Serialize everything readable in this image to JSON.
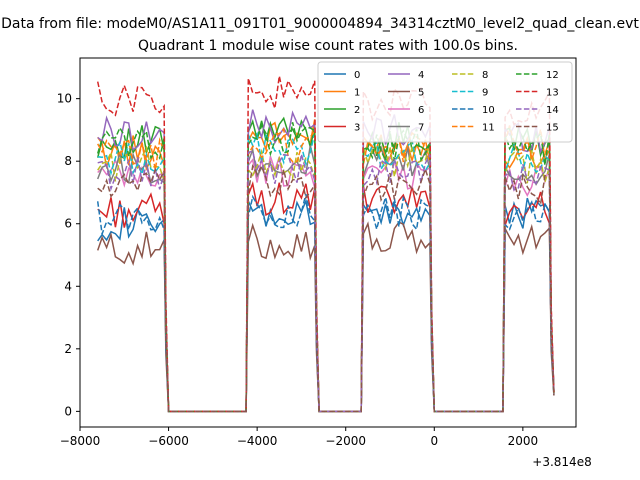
{
  "chart_data": {
    "type": "line",
    "suptitle": "Data from file: modeM0/AS1A11_091T01_9000004894_34314cztM0_level2_quad_clean.evt",
    "title": "Quadrant 1 module wise count rates with 100.0s bins.",
    "xlabel": "",
    "ylabel": "",
    "x_offset_label": "+3.814e8",
    "xlim": [
      -8000,
      3200
    ],
    "ylim": [
      -0.5,
      11.3
    ],
    "xticks": [
      -8000,
      -6000,
      -4000,
      -2000,
      0,
      2000
    ],
    "xtick_labels": [
      "−8000",
      "−6000",
      "−4000",
      "−2000",
      "0",
      "2000"
    ],
    "yticks": [
      0,
      2,
      4,
      6,
      8,
      10
    ],
    "ytick_labels": [
      "0",
      "2",
      "4",
      "6",
      "8",
      "10"
    ],
    "grid": false,
    "legend_position": "top-right",
    "legend_columns": 4,
    "segments": [
      [
        -7600,
        -6000
      ],
      [
        -4200,
        -2600
      ],
      [
        -1600,
        0
      ],
      [
        1600,
        2700
      ]
    ],
    "series": [
      {
        "name": "0",
        "color": "#1f77b4",
        "dash": "solid",
        "levels": [
          6.0,
          6.2,
          6.3,
          6.4
        ]
      },
      {
        "name": "1",
        "color": "#ff7f0e",
        "dash": "solid",
        "levels": [
          8.3,
          8.8,
          8.5,
          8.3
        ]
      },
      {
        "name": "2",
        "color": "#2ca02c",
        "dash": "solid",
        "levels": [
          8.6,
          8.9,
          8.7,
          8.6
        ]
      },
      {
        "name": "3",
        "color": "#d62728",
        "dash": "solid",
        "levels": [
          6.4,
          6.8,
          6.7,
          6.5
        ]
      },
      {
        "name": "4",
        "color": "#9467bd",
        "dash": "solid",
        "levels": [
          8.9,
          9.1,
          9.0,
          8.8
        ]
      },
      {
        "name": "5",
        "color": "#8c564b",
        "dash": "solid",
        "levels": [
          5.2,
          5.4,
          5.5,
          5.5
        ]
      },
      {
        "name": "6",
        "color": "#e377c2",
        "dash": "solid",
        "levels": [
          7.5,
          7.7,
          7.6,
          7.4
        ]
      },
      {
        "name": "7",
        "color": "#7f7f7f",
        "dash": "solid",
        "levels": [
          7.8,
          8.0,
          7.9,
          7.7
        ]
      },
      {
        "name": "8",
        "color": "#bcbd22",
        "dash": "dashed",
        "levels": [
          7.9,
          7.9,
          8.0,
          7.8
        ]
      },
      {
        "name": "9",
        "color": "#17becf",
        "dash": "dashed",
        "levels": [
          8.1,
          8.4,
          8.2,
          8.0
        ]
      },
      {
        "name": "10",
        "color": "#1f77b4",
        "dash": "dashed",
        "levels": [
          6.2,
          6.4,
          6.3,
          6.2
        ]
      },
      {
        "name": "11",
        "color": "#ff7f0e",
        "dash": "dashed",
        "levels": [
          8.2,
          8.5,
          8.4,
          8.6
        ]
      },
      {
        "name": "12",
        "color": "#2ca02c",
        "dash": "dashed",
        "levels": [
          8.6,
          8.7,
          8.5,
          8.4
        ]
      },
      {
        "name": "13",
        "color": "#d62728",
        "dash": "dashed",
        "levels": [
          10.0,
          10.2,
          9.8,
          9.7
        ]
      },
      {
        "name": "14",
        "color": "#9467bd",
        "dash": "dashed",
        "levels": [
          7.6,
          7.8,
          7.7,
          7.5
        ]
      },
      {
        "name": "15",
        "color": "#8c564b",
        "dash": "dashed",
        "levels": [
          7.2,
          7.3,
          7.2,
          7.1
        ]
      }
    ]
  }
}
